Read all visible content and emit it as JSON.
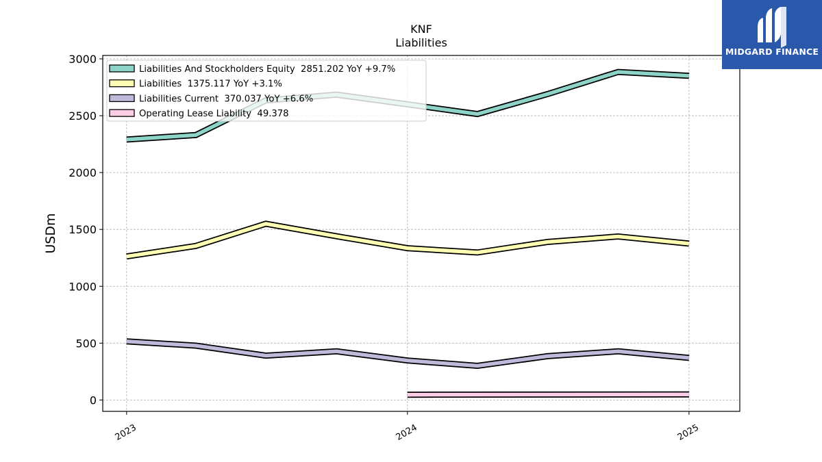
{
  "chart_data": {
    "type": "line",
    "title": "KNF",
    "subtitle": "Liabilities",
    "ylabel": "USDm",
    "xlabel": "",
    "ylim": [
      -100,
      3030
    ],
    "xlim": [
      "2022-12-01",
      "2025-03-08"
    ],
    "yticks": [
      0,
      500,
      1000,
      1500,
      2000,
      2500,
      3000
    ],
    "xticks": [
      {
        "date": "2023-01-01",
        "label": "2023"
      },
      {
        "date": "2024-01-01",
        "label": "2024"
      },
      {
        "date": "2025-01-01",
        "label": "2025"
      }
    ],
    "grid": true,
    "legend_position": "top-left",
    "series": [
      {
        "name": "Liabilities And Stockholders Equity",
        "legend": "Liabilities And Stockholders Equity  2851.202 YoY +9.7%",
        "color": "#8dd3c7",
        "x": [
          "2023-01-01",
          "2023-04-01",
          "2023-07-01",
          "2023-10-01",
          "2024-01-01",
          "2024-04-01",
          "2024-07-01",
          "2024-10-01",
          "2025-01-01"
        ],
        "values": [
          2290,
          2330,
          2635,
          2685,
          2600,
          2515,
          2690,
          2885,
          2851.202
        ]
      },
      {
        "name": "Liabilities",
        "legend": "Liabilities  1375.117 YoY +3.1%",
        "color": "#ffffb3",
        "x": [
          "2023-01-01",
          "2023-04-01",
          "2023-07-01",
          "2023-10-01",
          "2024-01-01",
          "2024-04-01",
          "2024-07-01",
          "2024-10-01",
          "2025-01-01"
        ],
        "values": [
          1262,
          1355,
          1550,
          1440,
          1335,
          1297,
          1390,
          1438,
          1375.117
        ]
      },
      {
        "name": "Liabilities Current",
        "legend": "Liabilities Current  370.037 YoY +6.6%",
        "color": "#bebada",
        "x": [
          "2023-01-01",
          "2023-04-01",
          "2023-07-01",
          "2023-10-01",
          "2024-01-01",
          "2024-04-01",
          "2024-07-01",
          "2024-10-01",
          "2025-01-01"
        ],
        "values": [
          515,
          478,
          390,
          428,
          347,
          300,
          385,
          428,
          370.037
        ]
      },
      {
        "name": "Operating Lease Liability",
        "legend": "Operating Lease Liability  49.378",
        "color": "#fccde5",
        "x": [
          "2024-01-01",
          "2025-01-01"
        ],
        "values": [
          46,
          49.378
        ]
      }
    ]
  },
  "watermark": {
    "text": "MIDGARD FINANCE",
    "bg_color": "#2a58ab",
    "icon": "midgard-logo-icon"
  }
}
